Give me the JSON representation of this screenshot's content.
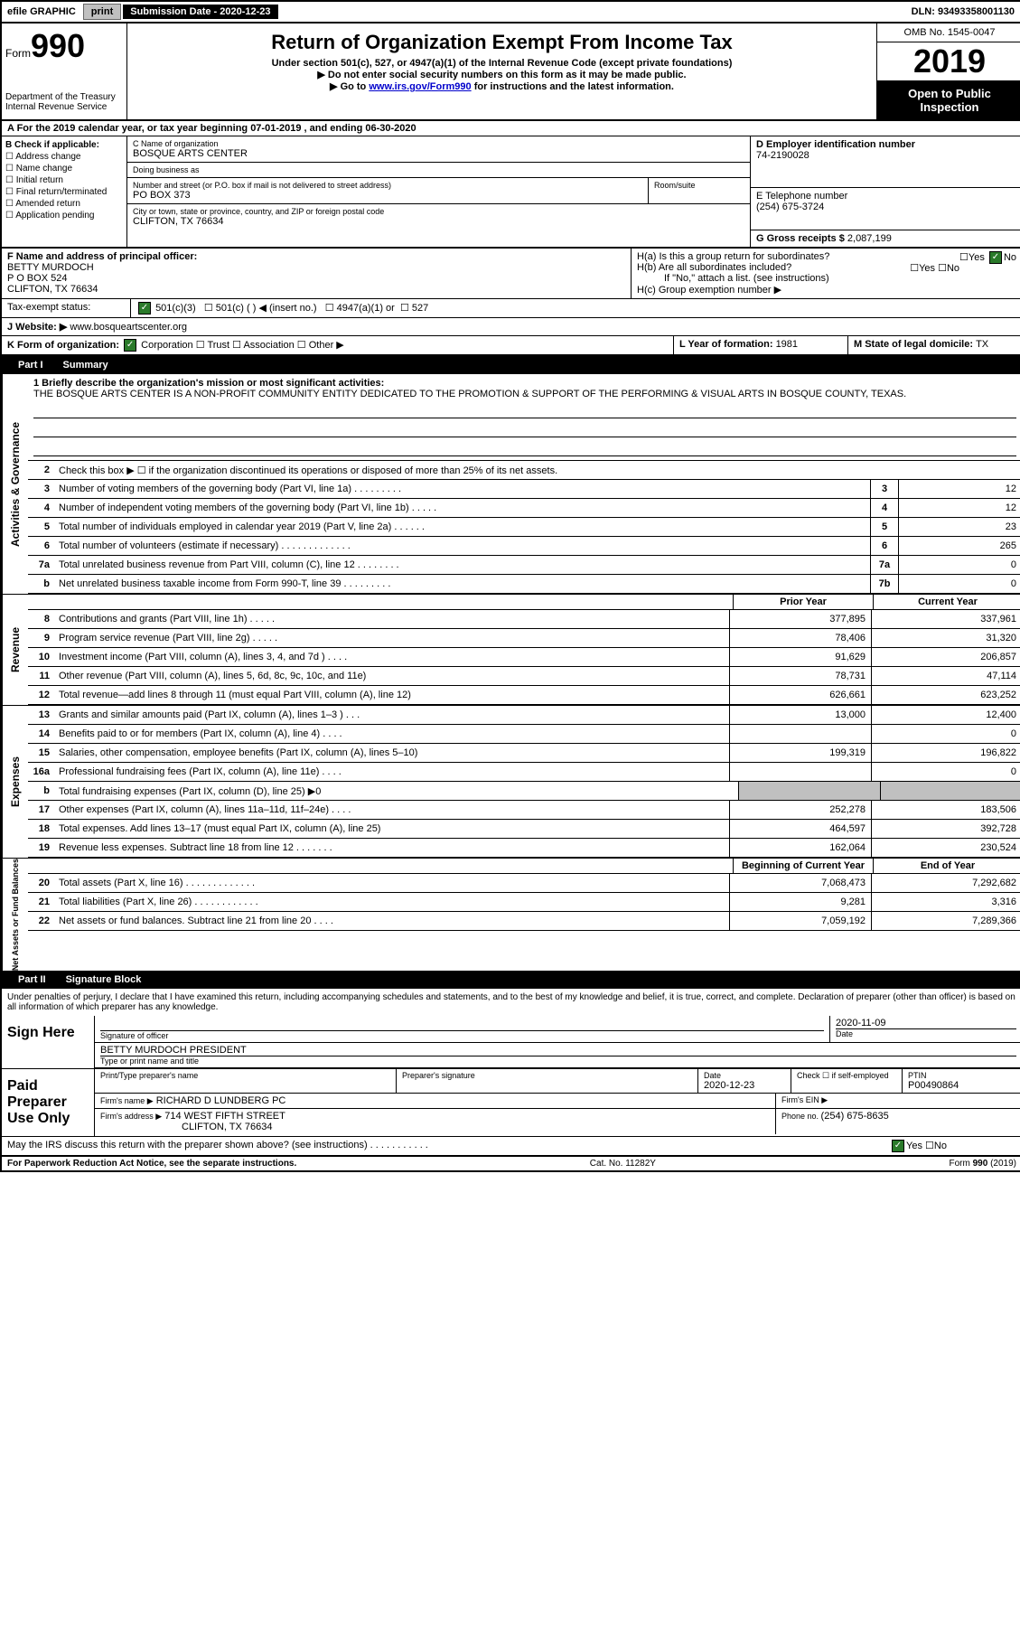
{
  "topbar": {
    "efile": "efile GRAPHIC",
    "print": "print",
    "sub_label": "Submission Date - 2020-12-23",
    "dln": "DLN: 93493358001130"
  },
  "header": {
    "form_prefix": "Form",
    "form_num": "990",
    "dept": "Department of the Treasury",
    "irs": "Internal Revenue Service",
    "title": "Return of Organization Exempt From Income Tax",
    "sub1": "Under section 501(c), 527, or 4947(a)(1) of the Internal Revenue Code (except private foundations)",
    "sub2": "▶ Do not enter social security numbers on this form as it may be made public.",
    "sub3_pre": "▶ Go to ",
    "sub3_link": "www.irs.gov/Form990",
    "sub3_post": " for instructions and the latest information.",
    "omb": "OMB No. 1545-0047",
    "year": "2019",
    "inspection": "Open to Public Inspection"
  },
  "section_a": "A For the 2019 calendar year, or tax year beginning 07-01-2019   , and ending 06-30-2020",
  "checks": {
    "header": "B Check if applicable:",
    "c1": "Address change",
    "c2": "Name change",
    "c3": "Initial return",
    "c4": "Final return/terminated",
    "c5": "Amended return",
    "c6": "Application pending"
  },
  "org": {
    "name_label": "C Name of organization",
    "name": "BOSQUE ARTS CENTER",
    "dba_label": "Doing business as",
    "addr_label": "Number and street (or P.O. box if mail is not delivered to street address)",
    "room_label": "Room/suite",
    "addr": "PO BOX 373",
    "city_label": "City or town, state or province, country, and ZIP or foreign postal code",
    "city": "CLIFTON, TX  76634",
    "ein_label": "D Employer identification number",
    "ein": "74-2190028",
    "phone_label": "E Telephone number",
    "phone": "(254) 675-3724",
    "gross_label": "G Gross receipts $ ",
    "gross": "2,087,199"
  },
  "officer": {
    "label": "F  Name and address of principal officer:",
    "name": "BETTY MURDOCH",
    "addr1": "P O BOX 524",
    "addr2": "CLIFTON, TX  76634"
  },
  "h": {
    "ha": "H(a)  Is this a group return for subordinates?",
    "hb": "H(b)  Are all subordinates included?",
    "hb_note": "If \"No,\" attach a list. (see instructions)",
    "hc": "H(c)  Group exemption number ▶",
    "yes": "Yes",
    "no": "No"
  },
  "status": {
    "label": "Tax-exempt status:",
    "c3": "501(c)(3)",
    "c": "501(c) (  ) ◀ (insert no.)",
    "a1": "4947(a)(1) or",
    "s527": "527"
  },
  "website": {
    "label": "J Website: ▶",
    "val": "www.bosqueartscenter.org"
  },
  "k": {
    "label": "K Form of organization:",
    "corp": "Corporation",
    "trust": "Trust",
    "assoc": "Association",
    "other": "Other ▶"
  },
  "l": {
    "label": "L Year of formation: ",
    "val": "1981"
  },
  "m": {
    "label": "M State of legal domicile: ",
    "val": "TX"
  },
  "parts": {
    "p1": "Part I",
    "p1_title": "Summary",
    "p2": "Part II",
    "p2_title": "Signature Block"
  },
  "mission": {
    "q1": "1  Briefly describe the organization's mission or most significant activities:",
    "text": "THE BOSQUE ARTS CENTER IS A NON-PROFIT COMMUNITY ENTITY DEDICATED TO THE PROMOTION & SUPPORT OF THE PERFORMING & VISUAL ARTS IN BOSQUE COUNTY, TEXAS."
  },
  "gov": {
    "l2": "Check this box ▶ ☐  if the organization discontinued its operations or disposed of more than 25% of its net assets.",
    "rows": [
      {
        "n": "3",
        "d": "Number of voting members of the governing body (Part VI, line 1a)   .   .   .   .   .   .   .   .   .",
        "b": "3",
        "v": "12"
      },
      {
        "n": "4",
        "d": "Number of independent voting members of the governing body (Part VI, line 1b)   .   .   .   .   .",
        "b": "4",
        "v": "12"
      },
      {
        "n": "5",
        "d": "Total number of individuals employed in calendar year 2019 (Part V, line 2a)   .   .   .   .   .   .",
        "b": "5",
        "v": "23"
      },
      {
        "n": "6",
        "d": "Total number of volunteers (estimate if necessary)   .   .   .   .   .   .   .   .   .   .   .   .   .",
        "b": "6",
        "v": "265"
      },
      {
        "n": "7a",
        "d": "Total unrelated business revenue from Part VIII, column (C), line 12   .   .   .   .   .   .   .   .",
        "b": "7a",
        "v": "0"
      },
      {
        "n": "b",
        "d": "Net unrelated business taxable income from Form 990-T, line 39   .   .   .   .   .   .   .   .   .",
        "b": "7b",
        "v": "0"
      }
    ]
  },
  "revenue": {
    "hdr_prior": "Prior Year",
    "hdr_curr": "Current Year",
    "rows": [
      {
        "n": "8",
        "d": "Contributions and grants (Part VIII, line 1h)   .   .   .   .   .",
        "p": "377,895",
        "c": "337,961"
      },
      {
        "n": "9",
        "d": "Program service revenue (Part VIII, line 2g)   .   .   .   .   .",
        "p": "78,406",
        "c": "31,320"
      },
      {
        "n": "10",
        "d": "Investment income (Part VIII, column (A), lines 3, 4, and 7d )   .   .   .   .",
        "p": "91,629",
        "c": "206,857"
      },
      {
        "n": "11",
        "d": "Other revenue (Part VIII, column (A), lines 5, 6d, 8c, 9c, 10c, and 11e)",
        "p": "78,731",
        "c": "47,114"
      },
      {
        "n": "12",
        "d": "Total revenue—add lines 8 through 11 (must equal Part VIII, column (A), line 12)",
        "p": "626,661",
        "c": "623,252"
      }
    ]
  },
  "expenses": {
    "rows": [
      {
        "n": "13",
        "d": "Grants and similar amounts paid (Part IX, column (A), lines 1–3 )   .   .   .",
        "p": "13,000",
        "c": "12,400"
      },
      {
        "n": "14",
        "d": "Benefits paid to or for members (Part IX, column (A), line 4)   .   .   .   .",
        "p": "",
        "c": "0"
      },
      {
        "n": "15",
        "d": "Salaries, other compensation, employee benefits (Part IX, column (A), lines 5–10)",
        "p": "199,319",
        "c": "196,822"
      },
      {
        "n": "16a",
        "d": "Professional fundraising fees (Part IX, column (A), line 11e)   .   .   .   .",
        "p": "",
        "c": "0"
      },
      {
        "n": "b",
        "d": "Total fundraising expenses (Part IX, column (D), line 25) ▶0",
        "p": "grey",
        "c": "grey"
      },
      {
        "n": "17",
        "d": "Other expenses (Part IX, column (A), lines 11a–11d, 11f–24e)   .   .   .   .",
        "p": "252,278",
        "c": "183,506"
      },
      {
        "n": "18",
        "d": "Total expenses. Add lines 13–17 (must equal Part IX, column (A), line 25)",
        "p": "464,597",
        "c": "392,728"
      },
      {
        "n": "19",
        "d": "Revenue less expenses. Subtract line 18 from line 12   .   .   .   .   .   .   .",
        "p": "162,064",
        "c": "230,524"
      }
    ]
  },
  "netassets": {
    "hdr_beg": "Beginning of Current Year",
    "hdr_end": "End of Year",
    "rows": [
      {
        "n": "20",
        "d": "Total assets (Part X, line 16)   .   .   .   .   .   .   .   .   .   .   .   .   .",
        "p": "7,068,473",
        "c": "7,292,682"
      },
      {
        "n": "21",
        "d": "Total liabilities (Part X, line 26)   .   .   .   .   .   .   .   .   .   .   .   .",
        "p": "9,281",
        "c": "3,316"
      },
      {
        "n": "22",
        "d": "Net assets or fund balances. Subtract line 21 from line 20   .   .   .   .",
        "p": "7,059,192",
        "c": "7,289,366"
      }
    ]
  },
  "side_labels": {
    "gov": "Activities & Governance",
    "rev": "Revenue",
    "exp": "Expenses",
    "net": "Net Assets or Fund Balances"
  },
  "penalty": "Under penalties of perjury, I declare that I have examined this return, including accompanying schedules and statements, and to the best of my knowledge and belief, it is true, correct, and complete. Declaration of preparer (other than officer) is based on all information of which preparer has any knowledge.",
  "sign": {
    "here": "Sign Here",
    "sig_label": "Signature of officer",
    "date": "2020-11-09",
    "date_label": "Date",
    "name": "BETTY MURDOCH  PRESIDENT",
    "name_label": "Type or print name and title"
  },
  "paid": {
    "title": "Paid Preparer Use Only",
    "print_label": "Print/Type preparer's name",
    "sig_label": "Preparer's signature",
    "date_label": "Date",
    "date": "2020-12-23",
    "check_label": "Check ☐ if self-employed",
    "ptin_label": "PTIN",
    "ptin": "P00490864",
    "firm_name_label": "Firm's name    ▶",
    "firm_name": "RICHARD D LUNDBERG PC",
    "firm_ein_label": "Firm's EIN ▶",
    "firm_addr_label": "Firm's address ▶",
    "firm_addr1": "714 WEST FIFTH STREET",
    "firm_addr2": "CLIFTON, TX  76634",
    "phone_label": "Phone no. ",
    "phone": "(254) 675-8635"
  },
  "discuss": "May the IRS discuss this return with the preparer shown above? (see instructions)   .   .   .   .   .   .   .   .   .   .   .",
  "footer": {
    "left": "For Paperwork Reduction Act Notice, see the separate instructions.",
    "center": "Cat. No. 11282Y",
    "right": "Form 990 (2019)"
  }
}
